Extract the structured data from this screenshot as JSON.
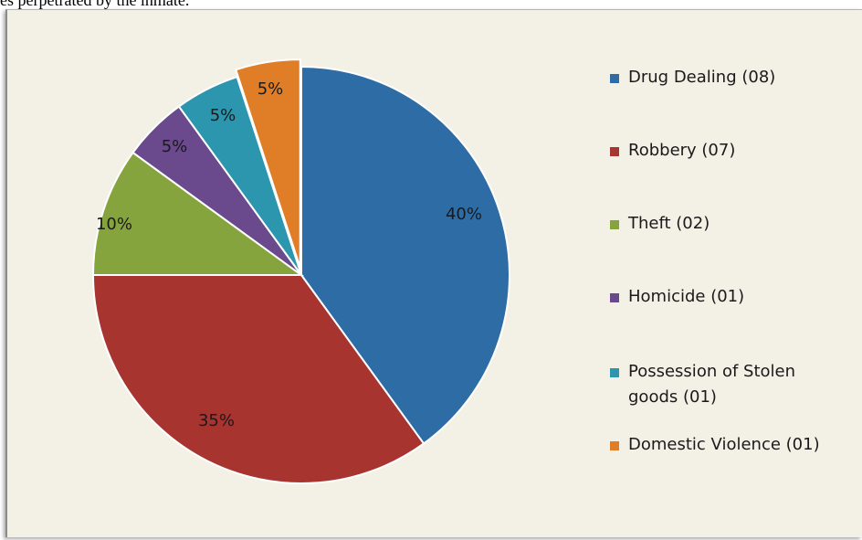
{
  "caption": "es perpetrated by the inmate.",
  "chart_data": {
    "type": "pie",
    "title": "",
    "slices": [
      {
        "label": "Drug Dealing (08)",
        "value": 8,
        "percent_label": "40%",
        "color": "#2e6ca6"
      },
      {
        "label": "Robbery (07)",
        "value": 7,
        "percent_label": "35%",
        "color": "#a83430"
      },
      {
        "label": "Theft (02)",
        "value": 2,
        "percent_label": "10%",
        "color": "#86a43d"
      },
      {
        "label": "Homicide (01)",
        "value": 1,
        "percent_label": "5%",
        "color": "#6a4a8c"
      },
      {
        "label": "Possession of Stolen goods (01)",
        "value": 1,
        "percent_label": "5%",
        "color": "#2c96ae"
      },
      {
        "label": "Domestic Violence (01)",
        "value": 1,
        "percent_label": "5%",
        "color": "#e07e28"
      }
    ],
    "legend_position": "right"
  }
}
